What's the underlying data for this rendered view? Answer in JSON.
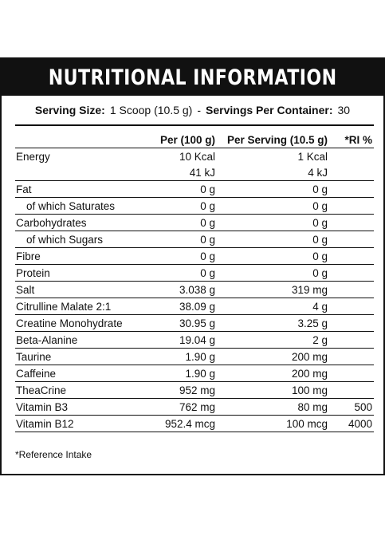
{
  "header": {
    "title": "NUTRITIONAL INFORMATION"
  },
  "serving": {
    "size_label": "Serving Size:",
    "size_value": "1 Scoop (10.5 g)",
    "separator": "-",
    "servings_label": "Servings Per Container:",
    "servings_value": "30"
  },
  "table": {
    "columns": [
      "",
      "Per (100 g)",
      "Per Serving (10.5 g)",
      "*RI %"
    ],
    "rows": [
      {
        "name": "Energy",
        "per100": "10 Kcal",
        "perServing": "1 Kcal",
        "ri": ""
      },
      {
        "name": "",
        "per100": "41 kJ",
        "perServing": "4 kJ",
        "ri": ""
      },
      {
        "name": "Fat",
        "per100": "0 g",
        "perServing": "0 g",
        "ri": ""
      },
      {
        "name": "of which Saturates",
        "per100": "0 g",
        "perServing": "0 g",
        "ri": ""
      },
      {
        "name": "Carbohydrates",
        "per100": "0 g",
        "perServing": "0 g",
        "ri": ""
      },
      {
        "name": "of which Sugars",
        "per100": "0 g",
        "perServing": "0 g",
        "ri": ""
      },
      {
        "name": "Fibre",
        "per100": "0 g",
        "perServing": "0 g",
        "ri": ""
      },
      {
        "name": "Protein",
        "per100": "0 g",
        "perServing": "0 g",
        "ri": ""
      },
      {
        "name": "Salt",
        "per100": "3.038 g",
        "perServing": "319 mg",
        "ri": ""
      },
      {
        "name": "Citrulline Malate 2:1",
        "per100": "38.09 g",
        "perServing": "4 g",
        "ri": ""
      },
      {
        "name": "Creatine Monohydrate",
        "per100": "30.95 g",
        "perServing": "3.25 g",
        "ri": ""
      },
      {
        "name": "Beta-Alanine",
        "per100": "19.04 g",
        "perServing": "2 g",
        "ri": ""
      },
      {
        "name": "Taurine",
        "per100": "1.90 g",
        "perServing": "200 mg",
        "ri": ""
      },
      {
        "name": "Caffeine",
        "per100": "1.90 g",
        "perServing": "200 mg",
        "ri": ""
      },
      {
        "name": "TheaCrine",
        "per100": "952 mg",
        "perServing": "100 mg",
        "ri": ""
      },
      {
        "name": "Vitamin B3",
        "per100": "762 mg",
        "perServing": "80 mg",
        "ri": "500"
      },
      {
        "name": "Vitamin B12",
        "per100": "952.4 mcg",
        "perServing": "100 mcg",
        "ri": "4000"
      }
    ]
  },
  "footnote": "*Reference Intake"
}
